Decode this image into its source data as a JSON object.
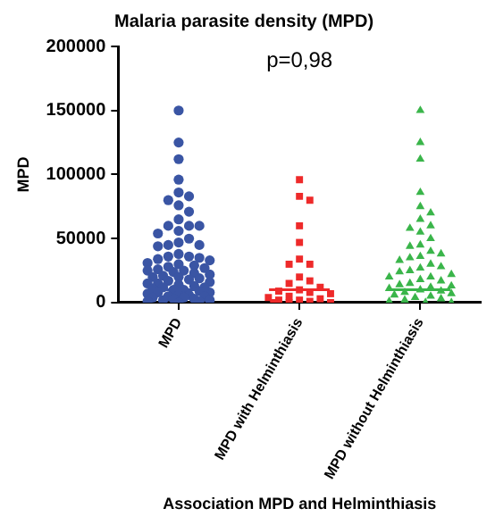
{
  "chart_data": {
    "type": "scatter",
    "title": "Malaria parasite density (MPD)",
    "xlabel": "Association MPD and Helminthiasis",
    "ylabel": "MPD",
    "categories": [
      "MPD",
      "MPD with Helminthiasis",
      "MPD without Helminthiasis"
    ],
    "ylim": [
      0,
      200000
    ],
    "yticks": [
      0,
      50000,
      100000,
      150000,
      200000
    ],
    "grid": false,
    "legend": false,
    "annotations": [
      "p=0,98"
    ],
    "series": [
      {
        "color": "#3a55a4",
        "marker": "circle",
        "x": [
          "MPD",
          "MPD",
          "MPD",
          "MPD",
          "MPD",
          "MPD",
          "MPD",
          "MPD",
          "MPD",
          "MPD",
          "MPD",
          "MPD",
          "MPD",
          "MPD",
          "MPD",
          "MPD",
          "MPD",
          "MPD",
          "MPD",
          "MPD",
          "MPD",
          "MPD",
          "MPD",
          "MPD",
          "MPD",
          "MPD",
          "MPD",
          "MPD",
          "MPD",
          "MPD",
          "MPD",
          "MPD",
          "MPD",
          "MPD",
          "MPD",
          "MPD",
          "MPD",
          "MPD",
          "MPD",
          "MPD",
          "MPD",
          "MPD",
          "MPD",
          "MPD",
          "MPD",
          "MPD",
          "MPD",
          "MPD",
          "MPD",
          "MPD",
          "MPD",
          "MPD",
          "MPD",
          "MPD",
          "MPD",
          "MPD",
          "MPD",
          "MPD",
          "MPD",
          "MPD",
          "MPD",
          "MPD",
          "MPD",
          "MPD",
          "MPD",
          "MPD",
          "MPD",
          "MPD",
          "MPD",
          "MPD"
        ],
        "values": [
          150000,
          125000,
          112000,
          96000,
          86000,
          83000,
          80000,
          76000,
          71000,
          65000,
          60000,
          60000,
          60000,
          56000,
          54000,
          50000,
          47000,
          45000,
          45000,
          44000,
          38000,
          36000,
          36000,
          35000,
          34000,
          33000,
          31000,
          30000,
          29000,
          28000,
          27000,
          26000,
          25000,
          25000,
          24000,
          23000,
          22000,
          21000,
          20000,
          20000,
          19000,
          18000,
          17000,
          16000,
          15000,
          15000,
          14000,
          13000,
          12000,
          12000,
          11000,
          10000,
          10000,
          9000,
          8000,
          8000,
          7000,
          6000,
          6000,
          5000,
          5000,
          4000,
          4000,
          3000,
          3000,
          2000,
          2000,
          1000,
          1000,
          0
        ]
      },
      {
        "color": "#ee2a2a",
        "marker": "square",
        "x": [
          "MPD with Helminthiasis",
          "MPD with Helminthiasis",
          "MPD with Helminthiasis",
          "MPD with Helminthiasis",
          "MPD with Helminthiasis",
          "MPD with Helminthiasis",
          "MPD with Helminthiasis",
          "MPD with Helminthiasis",
          "MPD with Helminthiasis",
          "MPD with Helminthiasis",
          "MPD with Helminthiasis",
          "MPD with Helminthiasis",
          "MPD with Helminthiasis",
          "MPD with Helminthiasis",
          "MPD with Helminthiasis",
          "MPD with Helminthiasis",
          "MPD with Helminthiasis",
          "MPD with Helminthiasis",
          "MPD with Helminthiasis",
          "MPD with Helminthiasis",
          "MPD with Helminthiasis",
          "MPD with Helminthiasis",
          "MPD with Helminthiasis",
          "MPD with Helminthiasis",
          "MPD with Helminthiasis"
        ],
        "values": [
          96000,
          83000,
          80000,
          60000,
          47000,
          34000,
          30000,
          30000,
          20000,
          17000,
          15000,
          12000,
          10000,
          9000,
          8000,
          7000,
          5000,
          4000,
          3000,
          2000,
          2000,
          1000,
          0,
          0,
          0
        ]
      },
      {
        "color": "#3ab54a",
        "marker": "triangle",
        "x": [
          "MPD without Helminthiasis",
          "MPD without Helminthiasis",
          "MPD without Helminthiasis",
          "MPD without Helminthiasis",
          "MPD without Helminthiasis",
          "MPD without Helminthiasis",
          "MPD without Helminthiasis",
          "MPD without Helminthiasis",
          "MPD without Helminthiasis",
          "MPD without Helminthiasis",
          "MPD without Helminthiasis",
          "MPD without Helminthiasis",
          "MPD without Helminthiasis",
          "MPD without Helminthiasis",
          "MPD without Helminthiasis",
          "MPD without Helminthiasis",
          "MPD without Helminthiasis",
          "MPD without Helminthiasis",
          "MPD without Helminthiasis",
          "MPD without Helminthiasis",
          "MPD without Helminthiasis",
          "MPD without Helminthiasis",
          "MPD without Helminthiasis",
          "MPD without Helminthiasis",
          "MPD without Helminthiasis",
          "MPD without Helminthiasis",
          "MPD without Helminthiasis",
          "MPD without Helminthiasis",
          "MPD without Helminthiasis",
          "MPD without Helminthiasis",
          "MPD without Helminthiasis",
          "MPD without Helminthiasis",
          "MPD without Helminthiasis",
          "MPD without Helminthiasis",
          "MPD without Helminthiasis",
          "MPD without Helminthiasis",
          "MPD without Helminthiasis",
          "MPD without Helminthiasis",
          "MPD without Helminthiasis",
          "MPD without Helminthiasis",
          "MPD without Helminthiasis",
          "MPD without Helminthiasis",
          "MPD without Helminthiasis",
          "MPD without Helminthiasis",
          "MPD without Helminthiasis"
        ],
        "values": [
          150000,
          125000,
          112000,
          86000,
          75000,
          70000,
          65000,
          60000,
          58000,
          55000,
          50000,
          45000,
          44000,
          40000,
          38000,
          36000,
          35000,
          33000,
          30000,
          28000,
          27000,
          25000,
          24000,
          22000,
          20000,
          20000,
          18000,
          17000,
          15000,
          14000,
          13000,
          12000,
          11000,
          10000,
          9000,
          8000,
          7000,
          6000,
          5000,
          4000,
          3000,
          2000,
          1000,
          0,
          0
        ]
      },
      {
        "type": "box",
        "colors": [
          "#3a55a4",
          "#ee2a2a",
          "#3ab54a"
        ],
        "x": [
          "MPD",
          "MPD with Helminthiasis",
          "MPD without Helminthiasis"
        ],
        "boxes": [
          {
            "low": 10000,
            "q1": 10000,
            "median": 10000,
            "q3": 10000,
            "high": 10000
          },
          {
            "low": 10000,
            "q1": 10000,
            "median": 10000,
            "q3": 10000,
            "high": 10000
          },
          {
            "low": 10000,
            "q1": 10000,
            "median": 10000,
            "q3": 10000,
            "high": 10000
          }
        ]
      }
    ]
  }
}
